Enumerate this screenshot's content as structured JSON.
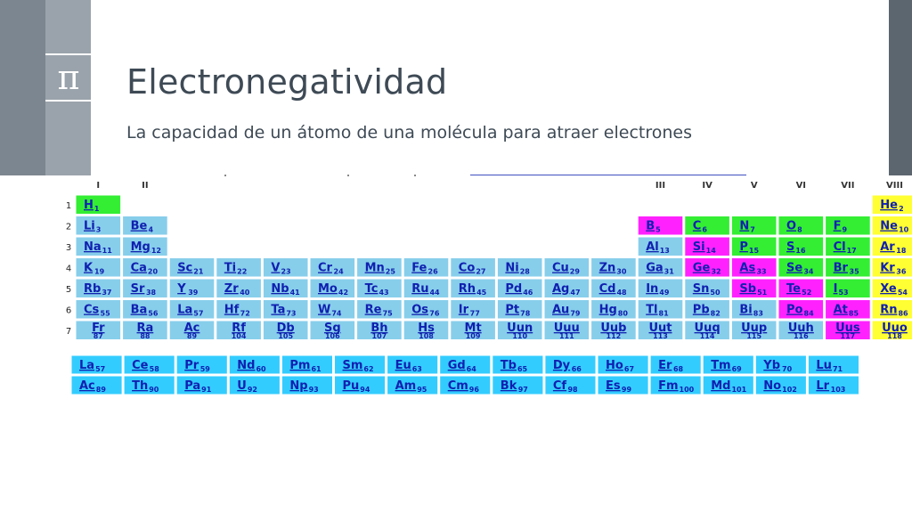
{
  "slide": {
    "title": "Electronegatividad",
    "subtitle": "La capacidad de un átomo de una molécula para atraer electrones",
    "icon": "pi-icon",
    "icon_glyph": "π"
  },
  "colors": {
    "side_dark": "#7c8690",
    "side_light": "#9aa3ab",
    "side_right": "#5c666f",
    "title_text": "#3e4a55",
    "cell_blue": "#87ceeb",
    "cell_cyan": "#33ccff",
    "cell_green": "#33ee33",
    "cell_magenta": "#ff22ff",
    "cell_yellow": "#ffff33",
    "symbol_text": "#1020b0"
  },
  "periodic_table": {
    "group_headers": [
      {
        "label": "I",
        "col": 1
      },
      {
        "label": "II",
        "col": 2
      },
      {
        "label": "III",
        "col": 13
      },
      {
        "label": "IV",
        "col": 14
      },
      {
        "label": "V",
        "col": 15
      },
      {
        "label": "VI",
        "col": 16
      },
      {
        "label": "VII",
        "col": 17
      },
      {
        "label": "VIII",
        "col": 18
      }
    ],
    "periods": [
      "1",
      "2",
      "3",
      "4",
      "5",
      "6",
      "7"
    ],
    "elements": [
      {
        "s": "H",
        "n": "1",
        "p": 1,
        "g": 1,
        "c": "green"
      },
      {
        "s": "He",
        "n": "2",
        "p": 1,
        "g": 18,
        "c": "yellow"
      },
      {
        "s": "Li",
        "n": "3",
        "p": 2,
        "g": 1,
        "c": "blue"
      },
      {
        "s": "Be",
        "n": "4",
        "p": 2,
        "g": 2,
        "c": "blue"
      },
      {
        "s": "B",
        "n": "5",
        "p": 2,
        "g": 13,
        "c": "magenta"
      },
      {
        "s": "C",
        "n": "6",
        "p": 2,
        "g": 14,
        "c": "green"
      },
      {
        "s": "N",
        "n": "7",
        "p": 2,
        "g": 15,
        "c": "green"
      },
      {
        "s": "O",
        "n": "8",
        "p": 2,
        "g": 16,
        "c": "green"
      },
      {
        "s": "F",
        "n": "9",
        "p": 2,
        "g": 17,
        "c": "green"
      },
      {
        "s": "Ne",
        "n": "10",
        "p": 2,
        "g": 18,
        "c": "yellow"
      },
      {
        "s": "Na",
        "n": "11",
        "p": 3,
        "g": 1,
        "c": "blue"
      },
      {
        "s": "Mg",
        "n": "12",
        "p": 3,
        "g": 2,
        "c": "blue"
      },
      {
        "s": "Al",
        "n": "13",
        "p": 3,
        "g": 13,
        "c": "blue"
      },
      {
        "s": "Si",
        "n": "14",
        "p": 3,
        "g": 14,
        "c": "magenta"
      },
      {
        "s": "P",
        "n": "15",
        "p": 3,
        "g": 15,
        "c": "green"
      },
      {
        "s": "S",
        "n": "16",
        "p": 3,
        "g": 16,
        "c": "green"
      },
      {
        "s": "Cl",
        "n": "17",
        "p": 3,
        "g": 17,
        "c": "green"
      },
      {
        "s": "Ar",
        "n": "18",
        "p": 3,
        "g": 18,
        "c": "yellow"
      },
      {
        "s": "K",
        "n": "19",
        "p": 4,
        "g": 1,
        "c": "blue"
      },
      {
        "s": "Ca",
        "n": "20",
        "p": 4,
        "g": 2,
        "c": "blue"
      },
      {
        "s": "Sc",
        "n": "21",
        "p": 4,
        "g": 3,
        "c": "blue"
      },
      {
        "s": "Ti",
        "n": "22",
        "p": 4,
        "g": 4,
        "c": "blue"
      },
      {
        "s": "V",
        "n": "23",
        "p": 4,
        "g": 5,
        "c": "blue"
      },
      {
        "s": "Cr",
        "n": "24",
        "p": 4,
        "g": 6,
        "c": "blue"
      },
      {
        "s": "Mn",
        "n": "25",
        "p": 4,
        "g": 7,
        "c": "blue"
      },
      {
        "s": "Fe",
        "n": "26",
        "p": 4,
        "g": 8,
        "c": "blue"
      },
      {
        "s": "Co",
        "n": "27",
        "p": 4,
        "g": 9,
        "c": "blue"
      },
      {
        "s": "Ni",
        "n": "28",
        "p": 4,
        "g": 10,
        "c": "blue"
      },
      {
        "s": "Cu",
        "n": "29",
        "p": 4,
        "g": 11,
        "c": "blue"
      },
      {
        "s": "Zn",
        "n": "30",
        "p": 4,
        "g": 12,
        "c": "blue"
      },
      {
        "s": "Ga",
        "n": "31",
        "p": 4,
        "g": 13,
        "c": "blue"
      },
      {
        "s": "Ge",
        "n": "32",
        "p": 4,
        "g": 14,
        "c": "magenta"
      },
      {
        "s": "As",
        "n": "33",
        "p": 4,
        "g": 15,
        "c": "magenta"
      },
      {
        "s": "Se",
        "n": "34",
        "p": 4,
        "g": 16,
        "c": "green"
      },
      {
        "s": "Br",
        "n": "35",
        "p": 4,
        "g": 17,
        "c": "green"
      },
      {
        "s": "Kr",
        "n": "36",
        "p": 4,
        "g": 18,
        "c": "yellow"
      },
      {
        "s": "Rb",
        "n": "37",
        "p": 5,
        "g": 1,
        "c": "blue"
      },
      {
        "s": "Sr",
        "n": "38",
        "p": 5,
        "g": 2,
        "c": "blue"
      },
      {
        "s": "Y",
        "n": "39",
        "p": 5,
        "g": 3,
        "c": "blue"
      },
      {
        "s": "Zr",
        "n": "40",
        "p": 5,
        "g": 4,
        "c": "blue"
      },
      {
        "s": "Nb",
        "n": "41",
        "p": 5,
        "g": 5,
        "c": "blue"
      },
      {
        "s": "Mo",
        "n": "42",
        "p": 5,
        "g": 6,
        "c": "blue"
      },
      {
        "s": "Tc",
        "n": "43",
        "p": 5,
        "g": 7,
        "c": "blue"
      },
      {
        "s": "Ru",
        "n": "44",
        "p": 5,
        "g": 8,
        "c": "blue"
      },
      {
        "s": "Rh",
        "n": "45",
        "p": 5,
        "g": 9,
        "c": "blue"
      },
      {
        "s": "Pd",
        "n": "46",
        "p": 5,
        "g": 10,
        "c": "blue"
      },
      {
        "s": "Ag",
        "n": "47",
        "p": 5,
        "g": 11,
        "c": "blue"
      },
      {
        "s": "Cd",
        "n": "48",
        "p": 5,
        "g": 12,
        "c": "blue"
      },
      {
        "s": "In",
        "n": "49",
        "p": 5,
        "g": 13,
        "c": "blue"
      },
      {
        "s": "Sn",
        "n": "50",
        "p": 5,
        "g": 14,
        "c": "blue"
      },
      {
        "s": "Sb",
        "n": "51",
        "p": 5,
        "g": 15,
        "c": "magenta"
      },
      {
        "s": "Te",
        "n": "52",
        "p": 5,
        "g": 16,
        "c": "magenta"
      },
      {
        "s": "I",
        "n": "53",
        "p": 5,
        "g": 17,
        "c": "green"
      },
      {
        "s": "Xe",
        "n": "54",
        "p": 5,
        "g": 18,
        "c": "yellow"
      },
      {
        "s": "Cs",
        "n": "55",
        "p": 6,
        "g": 1,
        "c": "blue"
      },
      {
        "s": "Ba",
        "n": "56",
        "p": 6,
        "g": 2,
        "c": "blue"
      },
      {
        "s": "La",
        "n": "57",
        "p": 6,
        "g": 3,
        "c": "blue"
      },
      {
        "s": "Hf",
        "n": "72",
        "p": 6,
        "g": 4,
        "c": "blue"
      },
      {
        "s": "Ta",
        "n": "73",
        "p": 6,
        "g": 5,
        "c": "blue"
      },
      {
        "s": "W",
        "n": "74",
        "p": 6,
        "g": 6,
        "c": "blue"
      },
      {
        "s": "Re",
        "n": "75",
        "p": 6,
        "g": 7,
        "c": "blue"
      },
      {
        "s": "Os",
        "n": "76",
        "p": 6,
        "g": 8,
        "c": "blue"
      },
      {
        "s": "Ir",
        "n": "77",
        "p": 6,
        "g": 9,
        "c": "blue"
      },
      {
        "s": "Pt",
        "n": "78",
        "p": 6,
        "g": 10,
        "c": "blue"
      },
      {
        "s": "Au",
        "n": "79",
        "p": 6,
        "g": 11,
        "c": "blue"
      },
      {
        "s": "Hg",
        "n": "80",
        "p": 6,
        "g": 12,
        "c": "blue"
      },
      {
        "s": "Tl",
        "n": "81",
        "p": 6,
        "g": 13,
        "c": "blue"
      },
      {
        "s": "Pb",
        "n": "82",
        "p": 6,
        "g": 14,
        "c": "blue"
      },
      {
        "s": "Bi",
        "n": "83",
        "p": 6,
        "g": 15,
        "c": "blue"
      },
      {
        "s": "Po",
        "n": "84",
        "p": 6,
        "g": 16,
        "c": "magenta"
      },
      {
        "s": "At",
        "n": "85",
        "p": 6,
        "g": 17,
        "c": "magenta"
      },
      {
        "s": "Rn",
        "n": "86",
        "p": 6,
        "g": 18,
        "c": "yellow"
      },
      {
        "s": "Fr",
        "n": "87",
        "p": 7,
        "g": 1,
        "c": "blue",
        "plain": true
      },
      {
        "s": "Ra",
        "n": "88",
        "p": 7,
        "g": 2,
        "c": "blue",
        "plain": true
      },
      {
        "s": "Ac",
        "n": "89",
        "p": 7,
        "g": 3,
        "c": "blue",
        "plain": true
      },
      {
        "s": "Rf",
        "n": "104",
        "p": 7,
        "g": 4,
        "c": "blue",
        "plain": true
      },
      {
        "s": "Db",
        "n": "105",
        "p": 7,
        "g": 5,
        "c": "blue",
        "plain": true
      },
      {
        "s": "Sg",
        "n": "106",
        "p": 7,
        "g": 6,
        "c": "blue",
        "plain": true
      },
      {
        "s": "Bh",
        "n": "107",
        "p": 7,
        "g": 7,
        "c": "blue",
        "plain": true
      },
      {
        "s": "Hs",
        "n": "108",
        "p": 7,
        "g": 8,
        "c": "blue",
        "plain": true
      },
      {
        "s": "Mt",
        "n": "109",
        "p": 7,
        "g": 9,
        "c": "blue",
        "plain": true
      },
      {
        "s": "Uun",
        "n": "110",
        "p": 7,
        "g": 10,
        "c": "blue",
        "plain": true
      },
      {
        "s": "Uuu",
        "n": "111",
        "p": 7,
        "g": 11,
        "c": "blue",
        "plain": true
      },
      {
        "s": "Uub",
        "n": "112",
        "p": 7,
        "g": 12,
        "c": "blue",
        "plain": true
      },
      {
        "s": "Uut",
        "n": "113",
        "p": 7,
        "g": 13,
        "c": "blue",
        "plain": true
      },
      {
        "s": "Uuq",
        "n": "114",
        "p": 7,
        "g": 14,
        "c": "blue",
        "plain": true
      },
      {
        "s": "Uup",
        "n": "115",
        "p": 7,
        "g": 15,
        "c": "blue",
        "plain": true
      },
      {
        "s": "Uuh",
        "n": "116",
        "p": 7,
        "g": 16,
        "c": "blue",
        "plain": true
      },
      {
        "s": "Uus",
        "n": "117",
        "p": 7,
        "g": 17,
        "c": "magenta",
        "plain": true
      },
      {
        "s": "Uuo",
        "n": "118",
        "p": 7,
        "g": 18,
        "c": "yellow",
        "plain": true
      }
    ],
    "lanthanides": [
      {
        "s": "La",
        "n": "57"
      },
      {
        "s": "Ce",
        "n": "58"
      },
      {
        "s": "Pr",
        "n": "59"
      },
      {
        "s": "Nd",
        "n": "60"
      },
      {
        "s": "Pm",
        "n": "61"
      },
      {
        "s": "Sm",
        "n": "62"
      },
      {
        "s": "Eu",
        "n": "63"
      },
      {
        "s": "Gd",
        "n": "64"
      },
      {
        "s": "Tb",
        "n": "65"
      },
      {
        "s": "Dy",
        "n": "66"
      },
      {
        "s": "Ho",
        "n": "67"
      },
      {
        "s": "Er",
        "n": "68"
      },
      {
        "s": "Tm",
        "n": "69"
      },
      {
        "s": "Yb",
        "n": "70"
      },
      {
        "s": "Lu",
        "n": "71"
      }
    ],
    "actinides": [
      {
        "s": "Ac",
        "n": "89"
      },
      {
        "s": "Th",
        "n": "90"
      },
      {
        "s": "Pa",
        "n": "91"
      },
      {
        "s": "U",
        "n": "92"
      },
      {
        "s": "Np",
        "n": "93"
      },
      {
        "s": "Pu",
        "n": "94"
      },
      {
        "s": "Am",
        "n": "95"
      },
      {
        "s": "Cm",
        "n": "96"
      },
      {
        "s": "Bk",
        "n": "97"
      },
      {
        "s": "Cf",
        "n": "98"
      },
      {
        "s": "Es",
        "n": "99"
      },
      {
        "s": "Fm",
        "n": "100"
      },
      {
        "s": "Md",
        "n": "101"
      },
      {
        "s": "No",
        "n": "102"
      },
      {
        "s": "Lr",
        "n": "103"
      }
    ]
  }
}
